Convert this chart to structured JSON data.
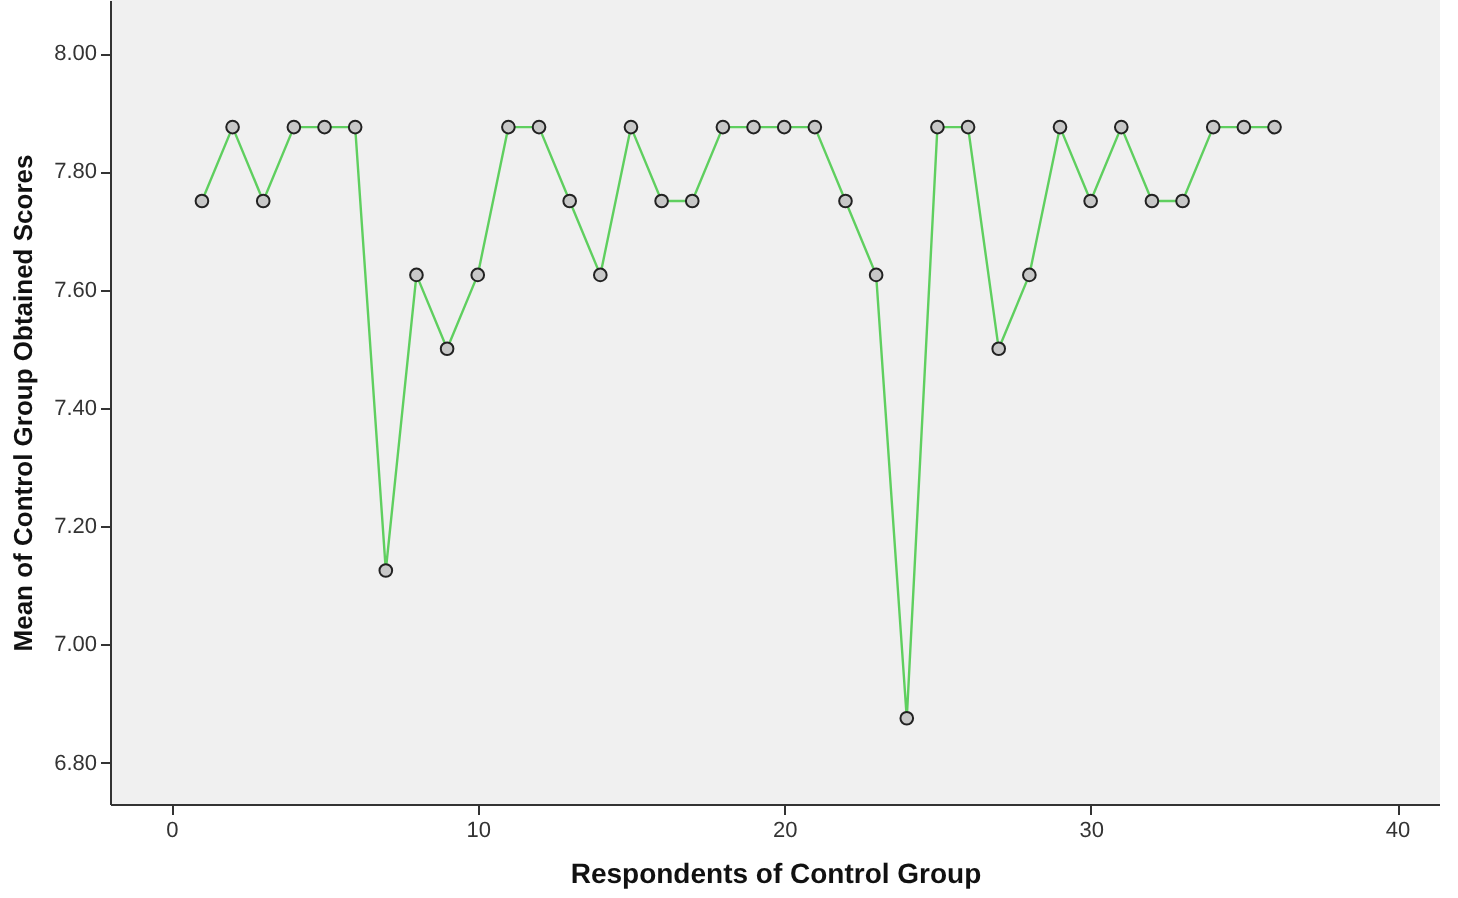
{
  "chart_data": {
    "type": "line",
    "xlabel": "Respondents of Control Group",
    "ylabel": "Mean of Control Group Obtained Scores",
    "x": [
      1,
      2,
      3,
      4,
      5,
      6,
      7,
      8,
      9,
      10,
      11,
      12,
      13,
      14,
      15,
      16,
      17,
      18,
      19,
      20,
      21,
      22,
      23,
      24,
      25,
      26,
      27,
      28,
      29,
      30,
      31,
      32,
      33,
      34,
      35,
      36
    ],
    "series": [
      {
        "color": "#5fcf5f",
        "values": [
          7.75,
          7.875,
          7.75,
          7.875,
          7.875,
          7.875,
          7.125,
          7.625,
          7.5,
          7.625,
          7.875,
          7.875,
          7.75,
          7.625,
          7.875,
          7.75,
          7.75,
          7.875,
          7.875,
          7.875,
          7.875,
          7.75,
          7.625,
          6.875,
          7.875,
          7.875,
          7.5,
          7.625,
          7.875,
          7.75,
          7.875,
          7.75,
          7.75,
          7.875,
          7.875,
          7.875
        ]
      }
    ],
    "xlim": [
      -2,
      41.4
    ],
    "xticks": [
      0,
      10,
      20,
      30,
      40
    ],
    "ylim": [
      6.73,
      8.09
    ],
    "yticks": [
      {
        "value": 6.8,
        "label": "6.80"
      },
      {
        "value": 7,
        "label": "7.00"
      },
      {
        "value": 7.2,
        "label": "7.20"
      },
      {
        "value": 7.4,
        "label": "7.40"
      },
      {
        "value": 7.6,
        "label": "7.60"
      },
      {
        "value": 7.8,
        "label": "7.80"
      },
      {
        "value": 8,
        "label": "8.00"
      }
    ],
    "marker": "circle",
    "grid": false,
    "legend": false
  }
}
